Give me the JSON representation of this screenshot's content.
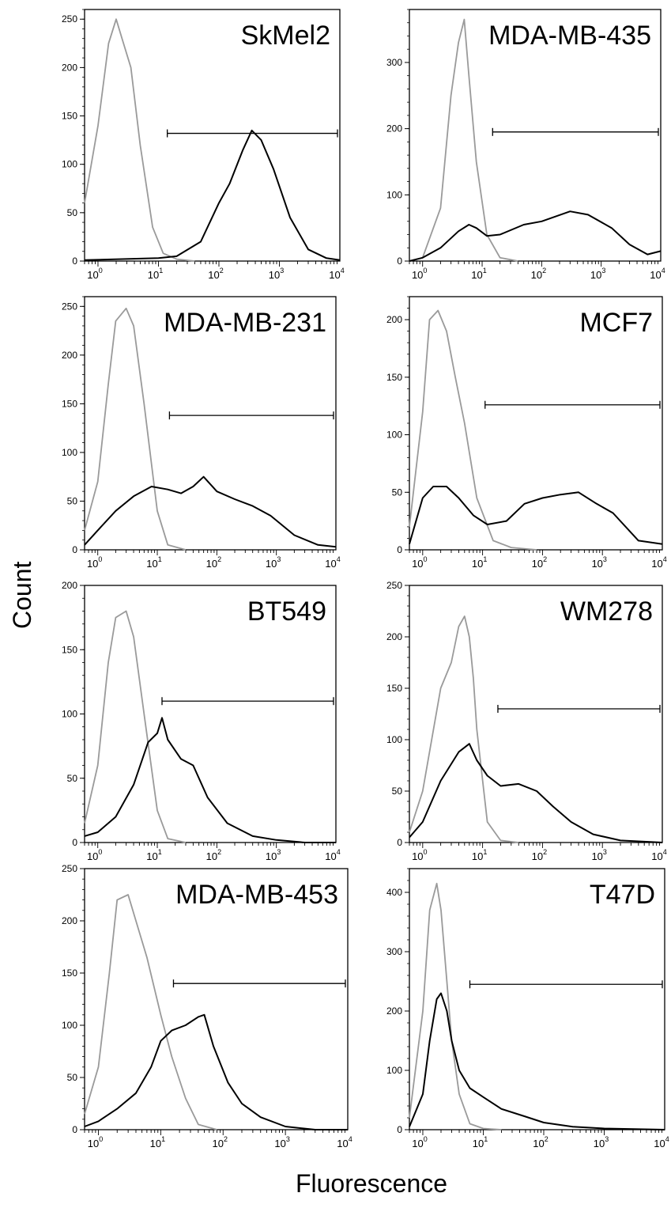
{
  "y_axis_label": "Count",
  "x_axis_label": "Fluorescence",
  "colors": {
    "control": "#9a9a9a",
    "sample": "#000000",
    "axis": "#000000"
  },
  "chart_data": [
    {
      "type": "line",
      "title": "SkMel2",
      "x_scale": "log",
      "xlim": [
        0.6,
        10000
      ],
      "ylim": [
        0,
        260
      ],
      "yticks": [
        0,
        50,
        100,
        150,
        200,
        250
      ],
      "xticks": [
        1,
        10,
        100,
        1000,
        10000
      ],
      "gate": [
        14,
        10000,
        132
      ],
      "series": [
        {
          "x": [
            0.6,
            1,
            1.5,
            2,
            2.5,
            3.5,
            5,
            8,
            12,
            20,
            40
          ],
          "values": [
            60,
            140,
            225,
            250,
            230,
            200,
            120,
            35,
            8,
            2,
            0
          ]
        },
        {
          "x": [
            0.6,
            10,
            20,
            50,
            100,
            150,
            250,
            350,
            500,
            800,
            1500,
            3000,
            6000,
            10000
          ],
          "values": [
            1,
            3,
            5,
            20,
            60,
            80,
            115,
            135,
            125,
            95,
            45,
            12,
            3,
            1
          ]
        }
      ]
    },
    {
      "type": "line",
      "title": "MDA-MB-435",
      "x_scale": "log",
      "xlim": [
        0.6,
        10000
      ],
      "ylim": [
        0,
        380
      ],
      "yticks": [
        0,
        100,
        200,
        300
      ],
      "xticks": [
        1,
        10,
        100,
        1000,
        10000
      ],
      "gate": [
        15,
        10000,
        195
      ],
      "series": [
        {
          "x": [
            0.6,
            1,
            2,
            3,
            4,
            5,
            6,
            8,
            12,
            20,
            40
          ],
          "values": [
            0,
            5,
            80,
            250,
            330,
            365,
            280,
            150,
            40,
            5,
            0
          ]
        },
        {
          "x": [
            0.6,
            1,
            2,
            4,
            6,
            8,
            12,
            20,
            50,
            100,
            300,
            600,
            1500,
            3000,
            6000,
            10000
          ],
          "values": [
            0,
            5,
            20,
            45,
            55,
            50,
            38,
            40,
            55,
            60,
            75,
            70,
            50,
            25,
            10,
            15
          ]
        }
      ]
    },
    {
      "type": "line",
      "title": "MDA-MB-231",
      "x_scale": "log",
      "xlim": [
        0.6,
        10000
      ],
      "ylim": [
        0,
        260
      ],
      "yticks": [
        0,
        50,
        100,
        150,
        200,
        250
      ],
      "xticks": [
        1,
        10,
        100,
        1000,
        10000
      ],
      "gate": [
        16,
        10000,
        138
      ],
      "series": [
        {
          "x": [
            0.6,
            1,
            1.5,
            2,
            3,
            4,
            6,
            10,
            15,
            30
          ],
          "values": [
            20,
            70,
            170,
            235,
            248,
            230,
            150,
            40,
            5,
            0
          ]
        },
        {
          "x": [
            0.6,
            1,
            2,
            4,
            8,
            15,
            25,
            40,
            60,
            100,
            200,
            400,
            800,
            2000,
            5000,
            10000
          ],
          "values": [
            5,
            20,
            40,
            55,
            65,
            62,
            58,
            65,
            75,
            60,
            52,
            45,
            35,
            15,
            5,
            3
          ]
        }
      ]
    },
    {
      "type": "line",
      "title": "MCF7",
      "x_scale": "log",
      "xlim": [
        0.6,
        10000
      ],
      "ylim": [
        0,
        220
      ],
      "yticks": [
        0,
        50,
        100,
        150,
        200
      ],
      "xticks": [
        1,
        10,
        100,
        1000,
        10000
      ],
      "gate": [
        11,
        10000,
        126
      ],
      "series": [
        {
          "x": [
            0.6,
            1,
            1.3,
            1.8,
            2.5,
            3.5,
            5,
            8,
            15,
            30,
            80
          ],
          "values": [
            20,
            120,
            200,
            208,
            190,
            150,
            110,
            45,
            8,
            2,
            0
          ]
        },
        {
          "x": [
            0.6,
            1,
            1.5,
            2.5,
            4,
            7,
            12,
            25,
            50,
            100,
            200,
            400,
            800,
            1500,
            4000,
            10000
          ],
          "values": [
            5,
            45,
            55,
            55,
            45,
            30,
            22,
            25,
            40,
            45,
            48,
            50,
            40,
            32,
            8,
            5
          ]
        }
      ]
    },
    {
      "type": "line",
      "title": "BT549",
      "x_scale": "log",
      "xlim": [
        0.6,
        10000
      ],
      "ylim": [
        0,
        200
      ],
      "yticks": [
        0,
        50,
        100,
        150,
        200
      ],
      "xticks": [
        1,
        10,
        100,
        1000,
        10000
      ],
      "gate": [
        12,
        10000,
        110
      ],
      "series": [
        {
          "x": [
            0.6,
            1,
            1.5,
            2,
            3,
            4,
            6,
            10,
            15,
            30
          ],
          "values": [
            15,
            60,
            140,
            175,
            180,
            160,
            100,
            25,
            3,
            0
          ]
        },
        {
          "x": [
            0.6,
            1,
            2,
            4,
            7,
            10,
            12,
            15,
            25,
            40,
            70,
            150,
            400,
            1000,
            3000,
            10000
          ],
          "values": [
            5,
            8,
            20,
            45,
            78,
            85,
            97,
            80,
            65,
            60,
            35,
            15,
            5,
            2,
            0,
            0
          ]
        }
      ]
    },
    {
      "type": "line",
      "title": "WM278",
      "x_scale": "log",
      "xlim": [
        0.6,
        10000
      ],
      "ylim": [
        0,
        250
      ],
      "yticks": [
        0,
        50,
        100,
        150,
        200,
        250
      ],
      "xticks": [
        1,
        10,
        100,
        1000,
        10000
      ],
      "gate": [
        18,
        10000,
        130
      ],
      "series": [
        {
          "x": [
            0.6,
            1,
            2,
            3,
            4,
            5,
            6,
            7,
            8,
            12,
            20,
            40
          ],
          "values": [
            10,
            50,
            150,
            175,
            210,
            220,
            200,
            160,
            110,
            20,
            2,
            0
          ]
        },
        {
          "x": [
            0.6,
            1,
            2,
            4,
            6,
            8,
            12,
            20,
            40,
            80,
            150,
            300,
            700,
            2000,
            10000
          ],
          "values": [
            5,
            20,
            60,
            88,
            96,
            80,
            65,
            55,
            57,
            50,
            35,
            20,
            8,
            2,
            0
          ]
        }
      ]
    },
    {
      "type": "line",
      "title": "MDA-MB-453",
      "x_scale": "log",
      "xlim": [
        0.6,
        10000
      ],
      "ylim": [
        0,
        250
      ],
      "yticks": [
        0,
        50,
        100,
        150,
        200,
        250
      ],
      "xticks": [
        1,
        10,
        100,
        1000,
        10000
      ],
      "gate": [
        16,
        10000,
        140
      ],
      "series": [
        {
          "x": [
            0.6,
            1,
            1.5,
            2,
            3,
            4,
            6,
            10,
            15,
            25,
            40,
            80
          ],
          "values": [
            15,
            60,
            150,
            220,
            225,
            200,
            165,
            110,
            70,
            30,
            5,
            0
          ]
        },
        {
          "x": [
            0.6,
            1,
            2,
            4,
            7,
            10,
            15,
            25,
            40,
            50,
            70,
            120,
            200,
            400,
            1000,
            3000,
            10000
          ],
          "values": [
            3,
            8,
            20,
            35,
            60,
            85,
            95,
            100,
            108,
            110,
            80,
            45,
            25,
            12,
            3,
            0,
            0
          ]
        }
      ]
    },
    {
      "type": "line",
      "title": "T47D",
      "x_scale": "log",
      "xlim": [
        0.6,
        10000
      ],
      "ylim": [
        0,
        440
      ],
      "yticks": [
        0,
        100,
        200,
        300,
        400
      ],
      "xticks": [
        1,
        10,
        100,
        1000,
        10000
      ],
      "gate": [
        6,
        10000,
        245
      ],
      "series": [
        {
          "x": [
            0.6,
            1,
            1.3,
            1.7,
            2,
            2.5,
            3,
            4,
            6,
            10,
            20
          ],
          "values": [
            20,
            200,
            370,
            415,
            370,
            250,
            150,
            60,
            10,
            2,
            0
          ]
        },
        {
          "x": [
            0.6,
            1,
            1.3,
            1.7,
            2,
            2.5,
            3,
            4,
            6,
            10,
            20,
            50,
            100,
            300,
            1000,
            10000
          ],
          "values": [
            5,
            60,
            150,
            220,
            230,
            200,
            150,
            100,
            70,
            55,
            35,
            22,
            12,
            5,
            2,
            0
          ]
        }
      ]
    }
  ]
}
